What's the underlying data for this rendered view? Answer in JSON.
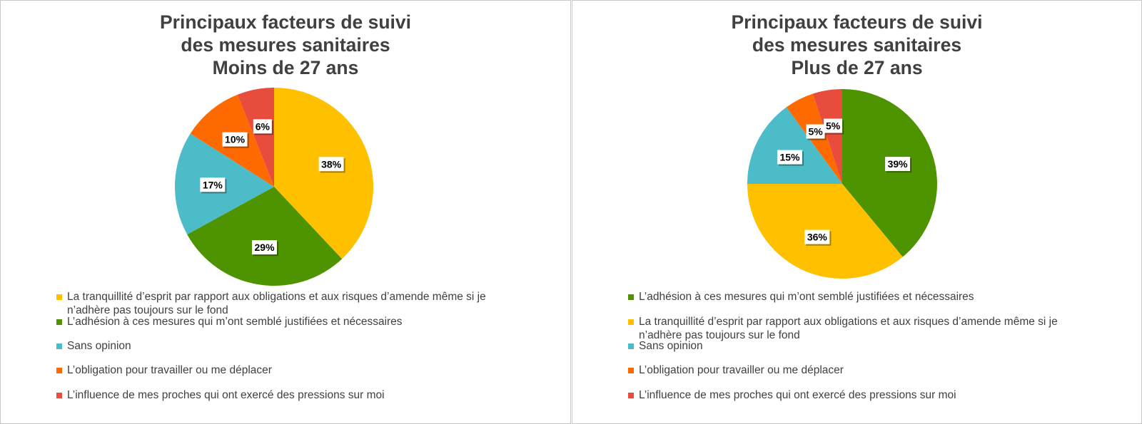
{
  "chart_data": [
    {
      "type": "pie",
      "title": [
        "Principaux facteurs de suivi",
        "des mesures sanitaires",
        "Moins de 27 ans"
      ],
      "slices": [
        {
          "label": "La tranquillité d’esprit par rapport aux obligations et aux risques d’amende même si je n’adhère pas toujours sur le fond",
          "value": 38,
          "data_label": "38%",
          "color": "#FFC000"
        },
        {
          "label": "L’adhésion à ces mesures qui m’ont semblé justifiées et nécessaires",
          "value": 29,
          "data_label": "29%",
          "color": "#4E9400"
        },
        {
          "label": "Sans opinion",
          "value": 17,
          "data_label": "17%",
          "color": "#4BBCC8"
        },
        {
          "label": "L’obligation pour travailler ou me déplacer",
          "value": 10,
          "data_label": "10%",
          "color": "#FF6A00"
        },
        {
          "label": "L’influence de mes proches qui ont exercé des pressions sur moi",
          "value": 6,
          "data_label": "6%",
          "color": "#E84C3D"
        }
      ],
      "legend_position": "bottom"
    },
    {
      "type": "pie",
      "title": [
        "Principaux facteurs de suivi",
        "des mesures sanitaires",
        "Plus de 27 ans"
      ],
      "slices": [
        {
          "label": "L’adhésion à ces mesures qui m’ont semblé justifiées et nécessaires",
          "value": 39,
          "data_label": "39%",
          "color": "#4E9400"
        },
        {
          "label": "La tranquillité d’esprit par rapport aux obligations et aux risques d’amende même si je n’adhère pas toujours sur le fond",
          "value": 36,
          "data_label": "36%",
          "color": "#FFC000"
        },
        {
          "label": "Sans opinion",
          "value": 15,
          "data_label": "15%",
          "color": "#4BBCC8"
        },
        {
          "label": "L’obligation pour travailler ou me déplacer",
          "value": 5,
          "data_label": "5%",
          "color": "#FF6A00"
        },
        {
          "label": "L’influence de mes proches qui ont exercé des pressions sur moi",
          "value": 5,
          "data_label": "5%",
          "color": "#E84C3D"
        }
      ],
      "legend_position": "bottom"
    }
  ]
}
